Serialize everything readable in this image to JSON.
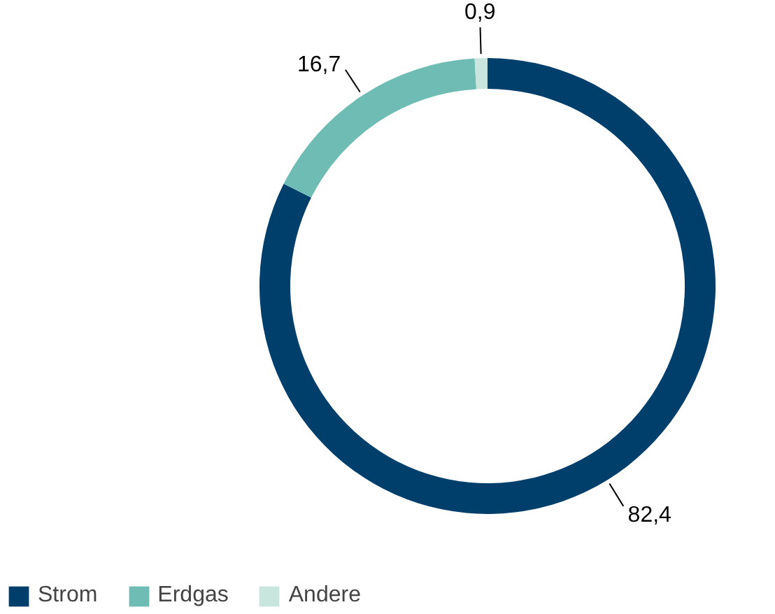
{
  "chart_data": {
    "type": "donut",
    "categories": [
      "Strom",
      "Erdgas",
      "Andere"
    ],
    "values": [
      82.4,
      16.7,
      0.9
    ],
    "colors": [
      "#003f6b",
      "#6fbcb5",
      "#c8e6de"
    ],
    "value_labels": [
      "82,4",
      "16,7",
      "0,9"
    ],
    "legend": "bottom left"
  }
}
